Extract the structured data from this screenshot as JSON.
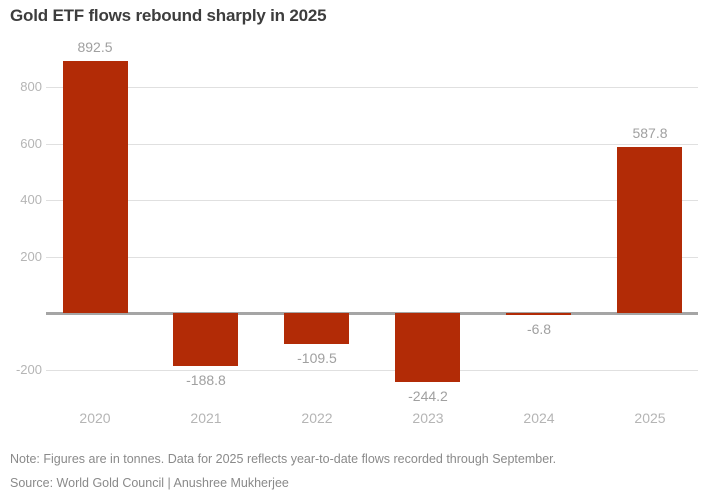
{
  "title": "Gold ETF flows rebound sharply in 2025",
  "note": "Note: Figures are in tonnes. Data for 2025 reflects year-to-date flows recorded through September.",
  "source": "Source: World Gold Council | Anushree Mukherjee",
  "colors": {
    "bar": "#b22b06",
    "title_text": "#3d3d3d",
    "tick_label": "#b5b5b5",
    "data_label": "#a0a0a0",
    "gridline": "#e0e0e0",
    "zero_line": "#a5a5a5",
    "footnote_text": "#8a8a8a",
    "background": "#ffffff"
  },
  "chart_data": {
    "type": "bar",
    "categories": [
      "2020",
      "2021",
      "2022",
      "2023",
      "2024",
      "2025"
    ],
    "values": [
      892.5,
      -188.8,
      -109.5,
      -244.2,
      -6.8,
      587.8
    ],
    "data_labels": [
      "892.5",
      "-188.8",
      "-109.5",
      "-244.2",
      "-6.8",
      "587.8"
    ],
    "title": "Gold ETF flows rebound sharply in 2025",
    "xlabel": "",
    "ylabel": "",
    "unit": "tonnes",
    "ylim": [
      -300,
      960
    ],
    "yticks": [
      800,
      600,
      400,
      200,
      -200
    ],
    "grid": true,
    "legend": false,
    "note": "Note: Figures are in tonnes. Data for 2025 reflects year-to-date flows recorded through September.",
    "source": "Source: World Gold Council | Anushree Mukherjee"
  }
}
